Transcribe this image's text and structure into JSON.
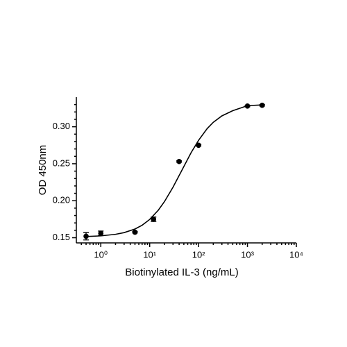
{
  "chart_data": {
    "type": "scatter",
    "x_label": "Biotinylated IL-3 (ng/mL)",
    "y_label": "OD 450nm",
    "x_log": true,
    "color": "#000000",
    "x": [
      0.5,
      1,
      5,
      12,
      40,
      100,
      1000,
      2000
    ],
    "values": [
      0.152,
      0.156,
      0.1575,
      0.175,
      0.253,
      0.275,
      0.328,
      0.329
    ],
    "errors": [
      0.005,
      0.003,
      0.001,
      0.003,
      0.001,
      0.001,
      0.001,
      0.001
    ],
    "curve": {
      "x": [
        0.5,
        1,
        2,
        3,
        5,
        7,
        10,
        15,
        20,
        30,
        45,
        70,
        100,
        150,
        200,
        300,
        500,
        1000,
        2000
      ],
      "values": [
        0.1516,
        0.1525,
        0.1546,
        0.1569,
        0.1618,
        0.1669,
        0.1747,
        0.1872,
        0.1987,
        0.2183,
        0.2405,
        0.2647,
        0.2817,
        0.2975,
        0.306,
        0.3147,
        0.3217,
        0.3285,
        0.3295
      ]
    },
    "xlim": [
      0.316,
      10000
    ],
    "xticks": [
      {
        "value": 1,
        "label": "10⁰"
      },
      {
        "value": 10,
        "label": "10¹"
      },
      {
        "value": 100,
        "label": "10²"
      },
      {
        "value": 1000,
        "label": "10³"
      },
      {
        "value": 10000,
        "label": "10⁴"
      }
    ],
    "xminorticks": [
      0.4,
      0.5,
      0.6,
      0.7,
      0.8,
      0.9,
      2,
      3,
      4,
      5,
      6,
      7,
      8,
      9,
      20,
      30,
      40,
      50,
      60,
      70,
      80,
      90,
      200,
      300,
      400,
      500,
      600,
      700,
      800,
      900,
      2000,
      3000,
      4000,
      5000,
      6000,
      7000,
      8000,
      9000
    ],
    "ylim": [
      0.143,
      0.34
    ],
    "yticks": [
      {
        "value": 0.15,
        "label": "0.15"
      },
      {
        "value": 0.2,
        "label": "0.20"
      },
      {
        "value": 0.25,
        "label": "0.25"
      },
      {
        "value": 0.3,
        "label": "0.30"
      }
    ],
    "yminorticks": [
      0.16,
      0.17,
      0.18,
      0.19,
      0.21,
      0.22,
      0.23,
      0.24,
      0.26,
      0.27,
      0.28,
      0.29,
      0.31,
      0.32,
      0.33
    ]
  }
}
